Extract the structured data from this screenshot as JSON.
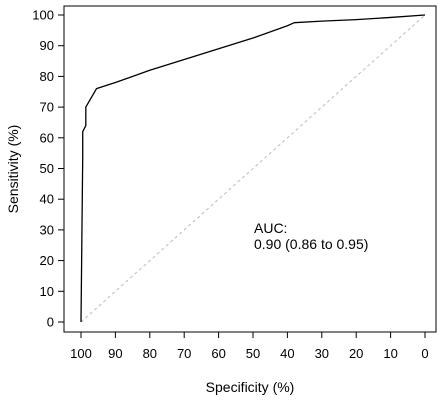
{
  "chart_data": {
    "type": "line",
    "xlabel": "Specificity (%)",
    "ylabel": "Sensitivity (%)",
    "xlim": [
      100,
      0
    ],
    "ylim": [
      0,
      100
    ],
    "x_reversed": true,
    "x_ticks": [
      "100",
      "90",
      "80",
      "70",
      "60",
      "50",
      "40",
      "30",
      "20",
      "10",
      "0"
    ],
    "y_ticks": [
      "0",
      "10",
      "20",
      "30",
      "40",
      "50",
      "60",
      "70",
      "80",
      "90",
      "100"
    ],
    "grid": false,
    "series": [
      {
        "style": "solid",
        "color": "#000000",
        "x": [
          100,
          99.5,
          99.5,
          98.6,
          98.6,
          95.5,
          90,
          80,
          70,
          60,
          50,
          40,
          38,
          30,
          20,
          10,
          0
        ],
        "y": [
          0,
          54,
          62,
          64,
          70,
          76,
          78,
          82,
          85.5,
          89,
          92.5,
          96.5,
          97.5,
          98,
          98.5,
          99.2,
          100
        ]
      },
      {
        "style": "dashed",
        "color": "#bbbbbb",
        "x": [
          100,
          0
        ],
        "y": [
          0,
          100
        ]
      }
    ],
    "annotations": [
      {
        "text": "AUC:"
      },
      {
        "text": "0.90 (0.86 to 0.95)"
      }
    ]
  }
}
